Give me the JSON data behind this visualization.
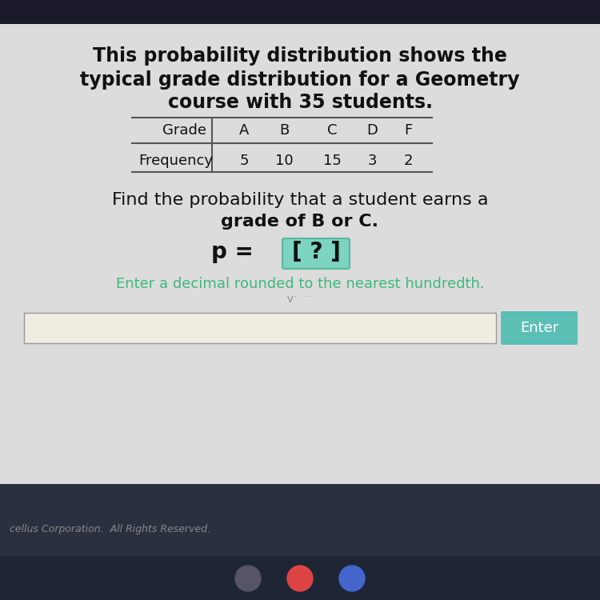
{
  "title_line1": "This probability distribution shows the",
  "title_line2": "typical grade distribution for a Geometry",
  "title_line3": "course with 35 students.",
  "grades": [
    "A",
    "B",
    "C",
    "D",
    "F"
  ],
  "frequencies": [
    "5",
    "10",
    "15",
    "3",
    "2"
  ],
  "question_line1": "Find the probability that a student earns a",
  "question_line2": "grade of B or C.",
  "p_prefix": "p = ",
  "p_bracket_text": "[ ? ]",
  "hint_text": "Enter a decimal rounded to the nearest hundredth.",
  "enter_btn": "Enter",
  "footer": "cellus Corporation.  All Rights Reserved.",
  "bg_outer": "#b0b0b0",
  "top_bar_color": "#1a1a2a",
  "content_bg": "#dcdcdc",
  "title_color": "#111111",
  "table_line_color": "#555555",
  "question_color": "#111111",
  "hint_color": "#3db87a",
  "p_color": "#111111",
  "p_box_color": "#7dd4c0",
  "p_box_edge": "#5ab8a0",
  "enter_btn_color": "#5bbfb5",
  "enter_btn_text_color": "#ffffff",
  "input_box_color": "#f0ece0",
  "input_box_edge": "#999999",
  "footer_bg": "#2a3040",
  "footer_color": "#888888",
  "bottom_bar_color": "#1e2535"
}
